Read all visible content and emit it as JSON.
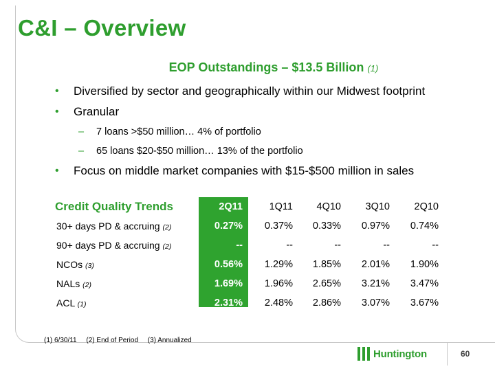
{
  "title": "C&I – Overview",
  "subtitle": {
    "text": "EOP Outstandings – $13.5 Billion",
    "ref": "(1)"
  },
  "bullets": {
    "b1": "Diversified by sector and geographically within our Midwest footprint",
    "b2": "Granular",
    "b2_sub1": "7 loans >$50 million… 4% of portfolio",
    "b2_sub2": "65 loans $20-$50 million… 13% of the portfolio",
    "b3": "Focus on middle market companies with $15-$500 million in sales"
  },
  "table": {
    "heading": "Credit Quality Trends",
    "columns": [
      "2Q11",
      "1Q11",
      "4Q10",
      "3Q10",
      "2Q10"
    ],
    "rows": [
      {
        "label": "30+ days PD & accruing",
        "ref": "(2)",
        "values": [
          "0.27%",
          "0.37%",
          "0.33%",
          "0.97%",
          "0.74%"
        ]
      },
      {
        "label": "90+ days PD & accruing",
        "ref": "(2)",
        "values": [
          "--",
          "--",
          "--",
          "--",
          "--"
        ]
      },
      {
        "label": "NCOs",
        "ref": "(3)",
        "values": [
          "0.56%",
          "1.29%",
          "1.85%",
          "2.01%",
          "1.90%"
        ]
      },
      {
        "label": "NALs",
        "ref": "(2)",
        "values": [
          "1.69%",
          "1.96%",
          "2.65%",
          "3.21%",
          "3.47%"
        ]
      },
      {
        "label": "ACL",
        "ref": "(1)",
        "values": [
          "2.31%",
          "2.48%",
          "2.86%",
          "3.07%",
          "3.67%"
        ]
      }
    ],
    "highlight_color": "#2fa32f"
  },
  "footnotes": [
    "(1)  6/30/11",
    "(2) End of Period",
    "(3) Annualized"
  ],
  "logo": {
    "text": "Huntington",
    "icon": "huntington-bars-icon",
    "color": "#2e9e2e"
  },
  "page_number": "60",
  "accent_color": "#2e9e2e"
}
